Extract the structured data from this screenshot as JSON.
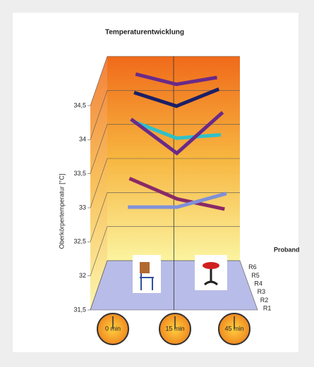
{
  "chart_data": {
    "type": "line3d",
    "title": "Temperaturentwicklung",
    "y_label": "Oberkörpertemperatur [°C]",
    "z_label": "Proband",
    "categories": [
      "0 min",
      "15 min",
      "45 min"
    ],
    "ylim": [
      31.5,
      34.5
    ],
    "yticks": [
      {
        "value": 31.5,
        "label": "31,5"
      },
      32,
      {
        "value": 32.5,
        "label": "32,5"
      },
      33,
      {
        "value": 33.5,
        "label": "33,5"
      },
      34,
      {
        "value": 34.5,
        "label": "34,5"
      }
    ],
    "series": [
      {
        "name": "R1",
        "color": "#8090d8",
        "values": [
          32.95,
          32.95,
          33.15
        ]
      },
      {
        "name": "R2",
        "color": "#8b2a66",
        "values": [
          33.25,
          32.95,
          32.8
        ]
      },
      {
        "name": "R3",
        "color": "#6a2a88",
        "values": [
          34.0,
          33.5,
          34.1
        ]
      },
      {
        "name": "R4",
        "color": "#30c0c8",
        "values": [
          33.85,
          33.6,
          33.65
        ]
      },
      {
        "name": "R5",
        "color": "#1a1f66",
        "values": [
          34.15,
          33.95,
          34.2
        ]
      },
      {
        "name": "R6",
        "color": "#6a2a88",
        "values": [
          34.3,
          34.15,
          34.25
        ]
      }
    ]
  }
}
